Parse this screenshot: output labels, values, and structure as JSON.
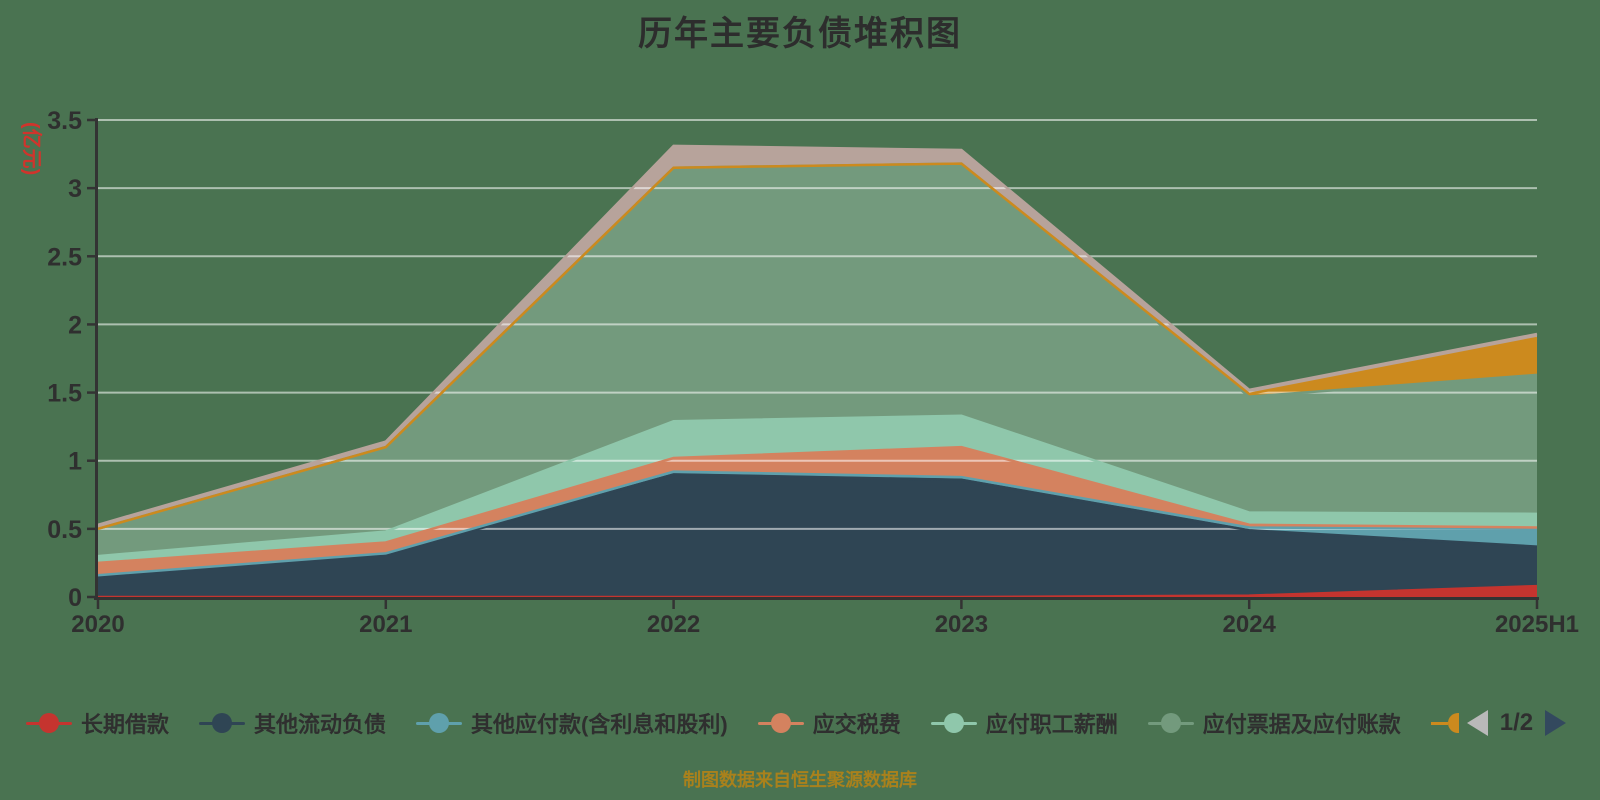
{
  "title": "历年主要负债堆积图",
  "y_axis_name": "(亿元)",
  "caption": "制图数据来自恒生聚源数据库",
  "legend": {
    "page_label": "1/2",
    "items": [
      {
        "label": "长期借款",
        "color": "#c5342f"
      },
      {
        "label": "其他流动负债",
        "color": "#2f4554"
      },
      {
        "label": "其他应付款(含利息和股利)",
        "color": "#5fa0ac"
      },
      {
        "label": "应交税费",
        "color": "#d4825f"
      },
      {
        "label": "应付职工薪酬",
        "color": "#8fc7ab"
      },
      {
        "label": "应付票据及应付账款",
        "color": "#739a7d"
      }
    ],
    "overflow_marker_color": "#cc8a1e"
  },
  "chart_data": {
    "type": "area",
    "stacked": true,
    "title": "历年主要负债堆积图",
    "xlabel": "",
    "ylabel": "(亿元)",
    "x": [
      "2020",
      "2021",
      "2022",
      "2023",
      "2024",
      "2025H1"
    ],
    "ylim": [
      0,
      3.5
    ],
    "ytick_labels": [
      "0",
      "0.5",
      "1",
      "1.5",
      "2",
      "2.5",
      "3",
      "3.5"
    ],
    "grid": true,
    "legend_position": "bottom",
    "series": [
      {
        "id": "s1",
        "name": "长期借款",
        "color": "#c5342f",
        "values": [
          0,
          0,
          0,
          0,
          0.01,
          0.08
        ]
      },
      {
        "id": "s2",
        "name": "其他流动负债",
        "color": "#2f4554",
        "values": [
          0.15,
          0.31,
          0.9,
          0.86,
          0.48,
          0.29
        ]
      },
      {
        "id": "s3",
        "name": "其他应付款(含利息和股利)",
        "color": "#5fa0ac",
        "values": [
          0.01,
          0.01,
          0.02,
          0.02,
          0.02,
          0.13
        ]
      },
      {
        "id": "s4",
        "name": "应交税费",
        "color": "#d4825f",
        "values": [
          0.09,
          0.08,
          0.1,
          0.22,
          0.02,
          0.01
        ]
      },
      {
        "id": "s5",
        "name": "应付职工薪酬",
        "color": "#8fc7ab",
        "values": [
          0.05,
          0.08,
          0.27,
          0.23,
          0.09,
          0.1
        ]
      },
      {
        "id": "s6",
        "name": "应付票据及应付账款",
        "color": "#739a7d",
        "values": [
          0.2,
          0.62,
          1.86,
          1.85,
          0.85,
          1.02
        ]
      },
      {
        "id": "s7-hidden-legend-page2",
        "name": "",
        "color": "#cc8a1e",
        "values": [
          0,
          0,
          0,
          0,
          0.02,
          0.27
        ]
      },
      {
        "id": "s8-hidden-legend-page2",
        "name": "",
        "color": "#b7a39b",
        "values": [
          0.03,
          0.04,
          0.16,
          0.1,
          0.03,
          0.03
        ]
      }
    ],
    "totals": [
      0.53,
      1.14,
      3.31,
      3.28,
      1.52,
      1.93
    ]
  },
  "colors": {
    "background": "#4a7351",
    "axis_line": "#333333",
    "axis_text": "#2f2f2f",
    "grid_line": "rgba(255,255,255,0.55)",
    "y_axis_name_text": "#d0342c",
    "caption_text": "#a9811c",
    "pager_prev_arrow": "#b9b9b9",
    "pager_next_arrow": "#33495e"
  }
}
